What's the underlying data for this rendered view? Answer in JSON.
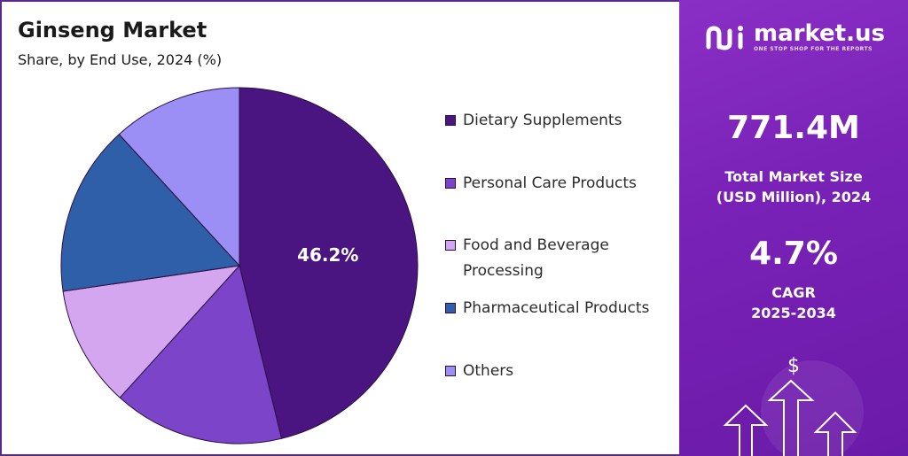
{
  "header": {
    "title": "Ginseng Market",
    "subtitle": "Share, by End Use, 2024 (%)"
  },
  "chart_data": {
    "type": "pie",
    "title": "Ginseng Market",
    "subtitle": "Share, by End Use, 2024 (%)",
    "slices": [
      {
        "label": "Dietary Supplements",
        "value": 46.2,
        "color": "#4a1580",
        "show_label": true,
        "display": "46.2%"
      },
      {
        "label": "Personal Care Products",
        "value": 15.5,
        "color": "#7c45c9",
        "show_label": false
      },
      {
        "label": "Food and Beverage Processing",
        "value": 11.0,
        "color": "#d4a6ef",
        "show_label": false
      },
      {
        "label": "Pharmaceutical Products",
        "value": 15.5,
        "color": "#2f5fa8",
        "show_label": false
      },
      {
        "label": "Others",
        "value": 11.8,
        "color": "#9b8ff5",
        "show_label": false
      }
    ],
    "legend_position": "right",
    "start_angle": "top, clockwise"
  },
  "legend": {
    "items": [
      {
        "label": "Dietary Supplements",
        "color": "#4a1580"
      },
      {
        "label": "Personal Care Products",
        "color": "#7c45c9"
      },
      {
        "label": "Food and Beverage Processing",
        "color": "#d4a6ef"
      },
      {
        "label": "Pharmaceutical Products",
        "color": "#2f5fa8"
      },
      {
        "label": "Others",
        "color": "#9b8ff5"
      }
    ]
  },
  "sidebar": {
    "brand_name": "market.us",
    "brand_tagline": "ONE STOP SHOP FOR THE REPORTS",
    "market_size_value": "771.4M",
    "market_size_label_line1": "Total Market Size",
    "market_size_label_line2": "(USD Million), 2024",
    "cagr_value": "4.7%",
    "cagr_label_line1": "CAGR",
    "cagr_label_line2": "2025-2034",
    "dollar_symbol": "$",
    "background_color": "#7a22b8"
  }
}
